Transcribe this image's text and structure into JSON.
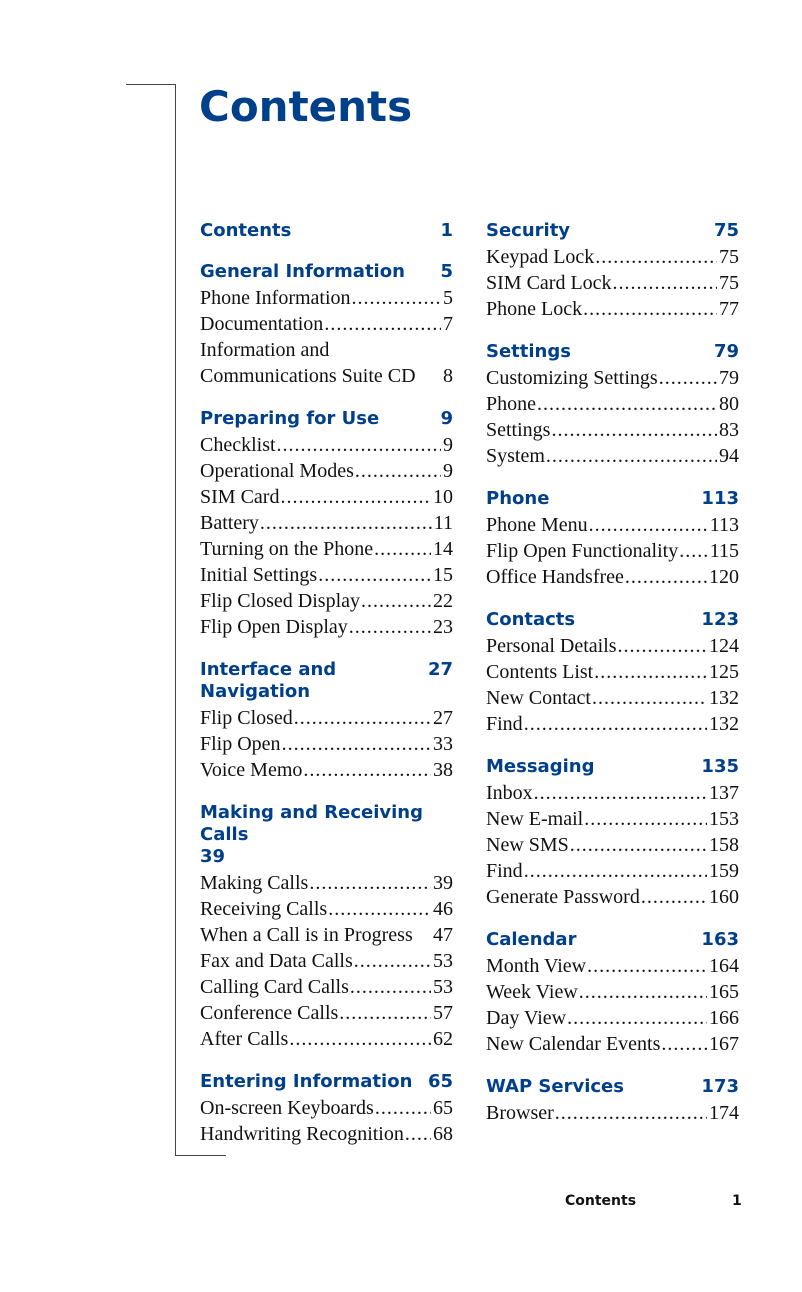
{
  "title": "Contents",
  "accent_color": "#003f8a",
  "columns": [
    [
      {
        "title": "Contents",
        "page": "1",
        "entries": []
      },
      {
        "title": "General Information",
        "page": "5",
        "entries": [
          {
            "label": "Phone Information",
            "page": "5"
          },
          {
            "label": "Documentation",
            "page": "7"
          },
          {
            "label": "Information and",
            "page": ""
          },
          {
            "label": "Communications Suite CD",
            "page": "8",
            "noleader": true
          }
        ]
      },
      {
        "title": "Preparing for Use",
        "page": "9",
        "entries": [
          {
            "label": "Checklist",
            "page": "9"
          },
          {
            "label": "Operational Modes",
            "page": "9"
          },
          {
            "label": "SIM Card",
            "page": "10"
          },
          {
            "label": "Battery",
            "page": "11"
          },
          {
            "label": "Turning on the Phone",
            "page": "14"
          },
          {
            "label": "Initial Settings",
            "page": "15"
          },
          {
            "label": "Flip Closed Display",
            "page": "22"
          },
          {
            "label": "Flip Open Display",
            "page": "23"
          }
        ]
      },
      {
        "title": "Interface and Navigation",
        "page": "27",
        "entries": [
          {
            "label": "Flip Closed",
            "page": "27"
          },
          {
            "label": "Flip Open",
            "page": "33"
          },
          {
            "label": "Voice Memo",
            "page": "38"
          }
        ]
      },
      {
        "title": "Making and Receiving Calls",
        "page": "39",
        "wrap": true,
        "entries": [
          {
            "label": "Making Calls",
            "page": "39"
          },
          {
            "label": "Receiving Calls",
            "page": "46"
          },
          {
            "label": "When a Call is in Progress",
            "page": "47",
            "noleader": true
          },
          {
            "label": "Fax and Data Calls",
            "page": "53"
          },
          {
            "label": "Calling Card Calls",
            "page": "53"
          },
          {
            "label": "Conference Calls",
            "page": "57"
          },
          {
            "label": "After Calls",
            "page": "62"
          }
        ]
      },
      {
        "title": "Entering Information",
        "page": "65",
        "entries": [
          {
            "label": "On-screen Keyboards",
            "page": "65"
          },
          {
            "label": "Handwriting Recognition",
            "page": "68"
          }
        ]
      }
    ],
    [
      {
        "title": "Security",
        "page": "75",
        "entries": [
          {
            "label": "Keypad Lock",
            "page": "75"
          },
          {
            "label": "SIM Card Lock",
            "page": "75"
          },
          {
            "label": "Phone Lock",
            "page": "77"
          }
        ]
      },
      {
        "title": "Settings",
        "page": "79",
        "entries": [
          {
            "label": "Customizing Settings",
            "page": "79"
          },
          {
            "label": "Phone",
            "page": "80"
          },
          {
            "label": "Settings",
            "page": "83"
          },
          {
            "label": "System",
            "page": "94"
          }
        ]
      },
      {
        "title": "Phone",
        "page": "113",
        "entries": [
          {
            "label": "Phone Menu",
            "page": "113"
          },
          {
            "label": "Flip Open Functionality",
            "page": "115"
          },
          {
            "label": "Office Handsfree",
            "page": "120"
          }
        ]
      },
      {
        "title": "Contacts",
        "page": "123",
        "entries": [
          {
            "label": "Personal Details",
            "page": "124"
          },
          {
            "label": "Contents List",
            "page": "125"
          },
          {
            "label": "New Contact",
            "page": "132"
          },
          {
            "label": "Find",
            "page": "132"
          }
        ]
      },
      {
        "title": "Messaging",
        "page": "135",
        "entries": [
          {
            "label": "Inbox",
            "page": "137"
          },
          {
            "label": "New E-mail",
            "page": "153"
          },
          {
            "label": "New SMS",
            "page": "158"
          },
          {
            "label": "Find",
            "page": "159"
          },
          {
            "label": "Generate Password",
            "page": "160"
          }
        ]
      },
      {
        "title": "Calendar",
        "page": "163",
        "entries": [
          {
            "label": "Month View",
            "page": "164"
          },
          {
            "label": "Week View",
            "page": "165"
          },
          {
            "label": "Day View",
            "page": "166"
          },
          {
            "label": "New Calendar Events",
            "page": "167"
          }
        ]
      },
      {
        "title": "WAP Services",
        "page": "173",
        "entries": [
          {
            "label": "Browser",
            "page": "174"
          }
        ]
      }
    ]
  ],
  "footer": {
    "label": "Contents",
    "page": "1"
  }
}
